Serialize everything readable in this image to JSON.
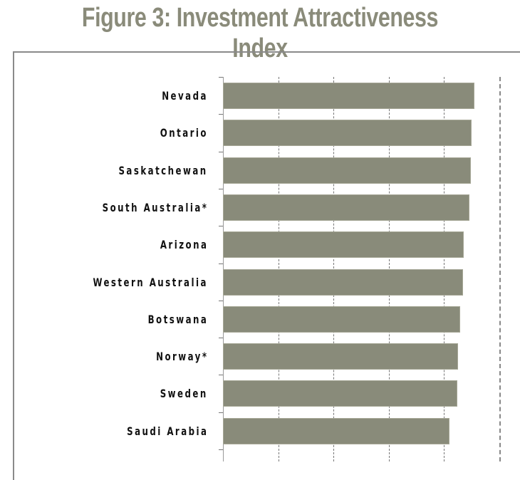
{
  "chart_data": {
    "type": "bar",
    "orientation": "horizontal",
    "title": "Figure 3: Investment Attractiveness Index",
    "xlabel": "",
    "ylabel": "",
    "xlim": [
      0,
      100
    ],
    "grid": true,
    "gridlines": [
      0,
      20,
      40,
      60,
      80,
      100
    ],
    "categories": [
      "Nevada",
      "Ontario",
      "Saskatchewan",
      "South Australia*",
      "Arizona",
      "Western Australia",
      "Botswana",
      "Norway*",
      "Sweden",
      "Saudi Arabia"
    ],
    "values": [
      91.0,
      89.9,
      89.7,
      89.2,
      87.1,
      86.9,
      85.8,
      85.1,
      84.8,
      82.0
    ],
    "bar_color": "#898b7a"
  },
  "header": {
    "title": "Figure 3: Investment Attractiveness Index"
  }
}
